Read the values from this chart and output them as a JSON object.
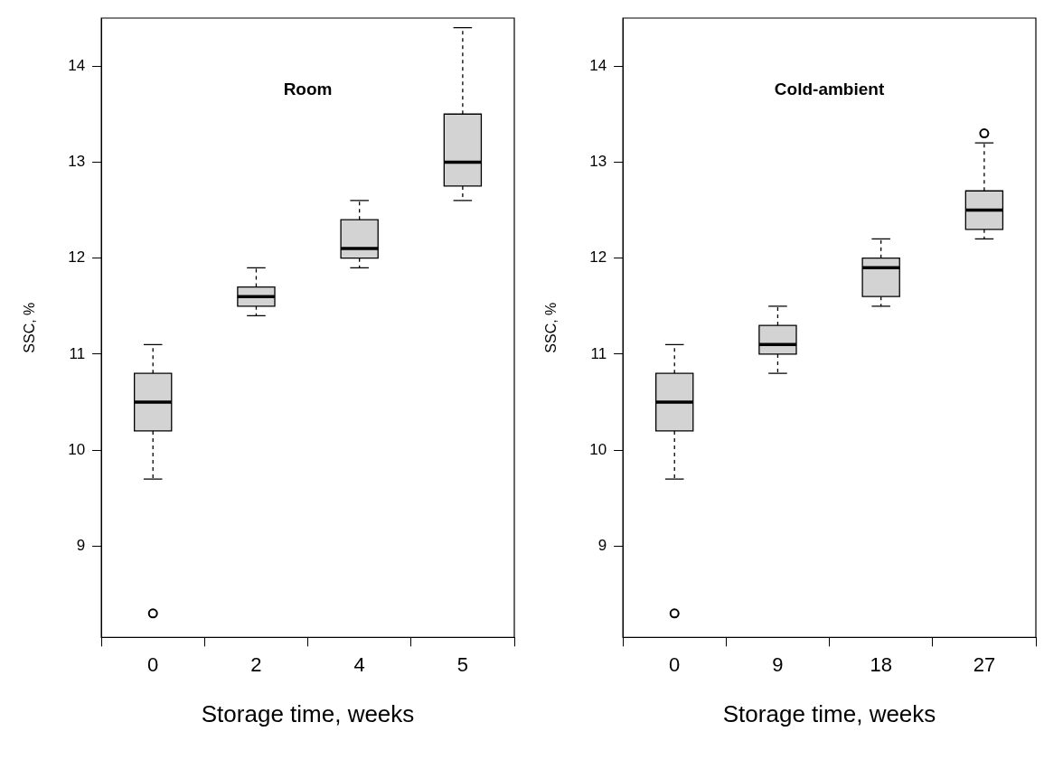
{
  "chart_data": [
    {
      "type": "box",
      "title": "Room",
      "xlabel": "Storage time, weeks",
      "ylabel": "SSC, %",
      "categories": [
        "0",
        "2",
        "4",
        "5"
      ],
      "color": "#d3d3d3",
      "ylim": [
        8.05,
        14.5
      ],
      "yticks": [
        9,
        10,
        11,
        12,
        13,
        14
      ],
      "grid": false,
      "boxes": [
        {
          "low": 9.7,
          "q1": 10.2,
          "median": 10.5,
          "q3": 10.8,
          "high": 11.1,
          "outliers": [
            8.3
          ]
        },
        {
          "low": 11.4,
          "q1": 11.5,
          "median": 11.6,
          "q3": 11.7,
          "high": 11.9
        },
        {
          "low": 11.9,
          "q1": 12.0,
          "median": 12.1,
          "q3": 12.4,
          "high": 12.6
        },
        {
          "low": 12.6,
          "q1": 12.75,
          "median": 13.0,
          "q3": 13.5,
          "high": 14.4
        }
      ]
    },
    {
      "type": "box",
      "title": "Cold-ambient",
      "xlabel": "Storage time, weeks",
      "ylabel": "SSC, %",
      "categories": [
        "0",
        "9",
        "18",
        "27"
      ],
      "color": "#d3d3d3",
      "ylim": [
        8.05,
        14.5
      ],
      "yticks": [
        9,
        10,
        11,
        12,
        13,
        14
      ],
      "grid": false,
      "boxes": [
        {
          "low": 9.7,
          "q1": 10.2,
          "median": 10.5,
          "q3": 10.8,
          "high": 11.1,
          "outliers": [
            8.3
          ]
        },
        {
          "low": 10.8,
          "q1": 11.0,
          "median": 11.1,
          "q3": 11.3,
          "high": 11.5
        },
        {
          "low": 11.5,
          "q1": 11.6,
          "median": 11.9,
          "q3": 12.0,
          "high": 12.2
        },
        {
          "low": 12.2,
          "q1": 12.3,
          "median": 12.5,
          "q3": 12.7,
          "high": 13.2,
          "outliers": [
            13.3
          ]
        }
      ]
    }
  ]
}
